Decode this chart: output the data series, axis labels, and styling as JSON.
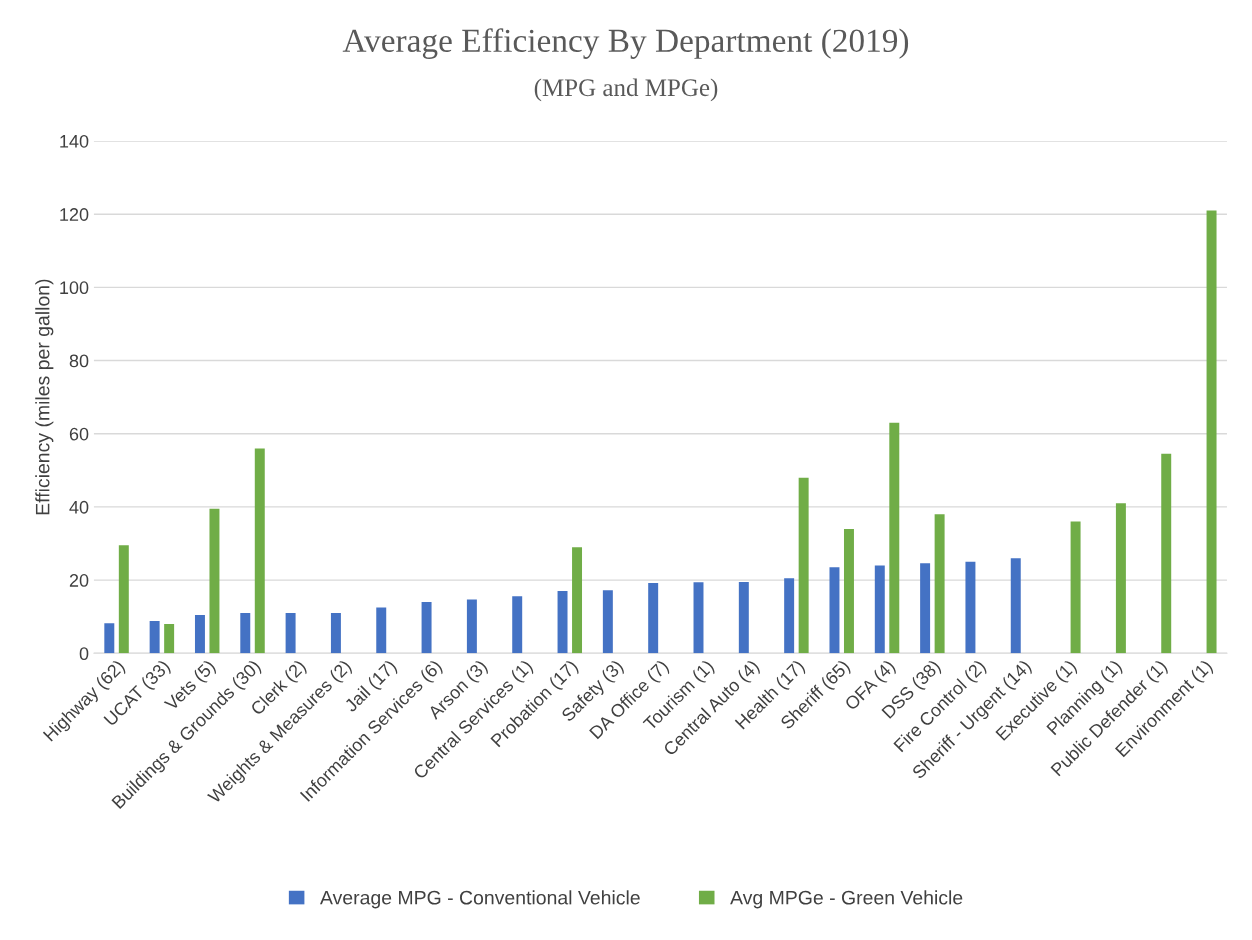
{
  "chart_data": {
    "type": "bar",
    "title": "Average Efficiency By Department (2019)",
    "subtitle": "(MPG and MPGe)",
    "ylabel": "Efficiency (miles per gallon)",
    "categories": [
      "Highway (62)",
      "UCAT (33)",
      "Vets (5)",
      "Buildings & Grounds (30)",
      "Clerk (2)",
      "Weights & Measures (2)",
      "Jail (17)",
      "Information Services (6)",
      "Arson (3)",
      "Central Services (1)",
      "Probation (17)",
      "Safety (3)",
      "DA Office (7)",
      "Tourism (1)",
      "Central Auto (4)",
      "Health (17)",
      "Sheriff (65)",
      "OFA (4)",
      "DSS (38)",
      "Fire Control (2)",
      "Sheriff - Urgent (14)",
      "Executive (1)",
      "Planning (1)",
      "Public Defender (1)",
      "Environment (1)"
    ],
    "series": [
      {
        "name": "Average MPG - Conventional Vehicle",
        "color": "#4472c4",
        "values": [
          8.2,
          8.8,
          10.5,
          11,
          11,
          11,
          12.5,
          14,
          14.7,
          15.6,
          17,
          17.2,
          19.2,
          19.4,
          19.5,
          20.5,
          23.5,
          24,
          24.6,
          25,
          26,
          null,
          null,
          null,
          null
        ]
      },
      {
        "name": "Avg MPGe - Green Vehicle",
        "color": "#70ad47",
        "values": [
          29.5,
          8,
          39.5,
          56,
          null,
          null,
          null,
          null,
          null,
          null,
          29,
          null,
          null,
          null,
          null,
          48,
          34,
          63,
          38,
          null,
          null,
          36,
          41,
          54.5,
          121
        ]
      }
    ],
    "ylim": [
      0,
      140
    ],
    "yticks": [
      0,
      20,
      40,
      60,
      80,
      100,
      120,
      140
    ],
    "grid": "y",
    "legend": "bottom"
  }
}
